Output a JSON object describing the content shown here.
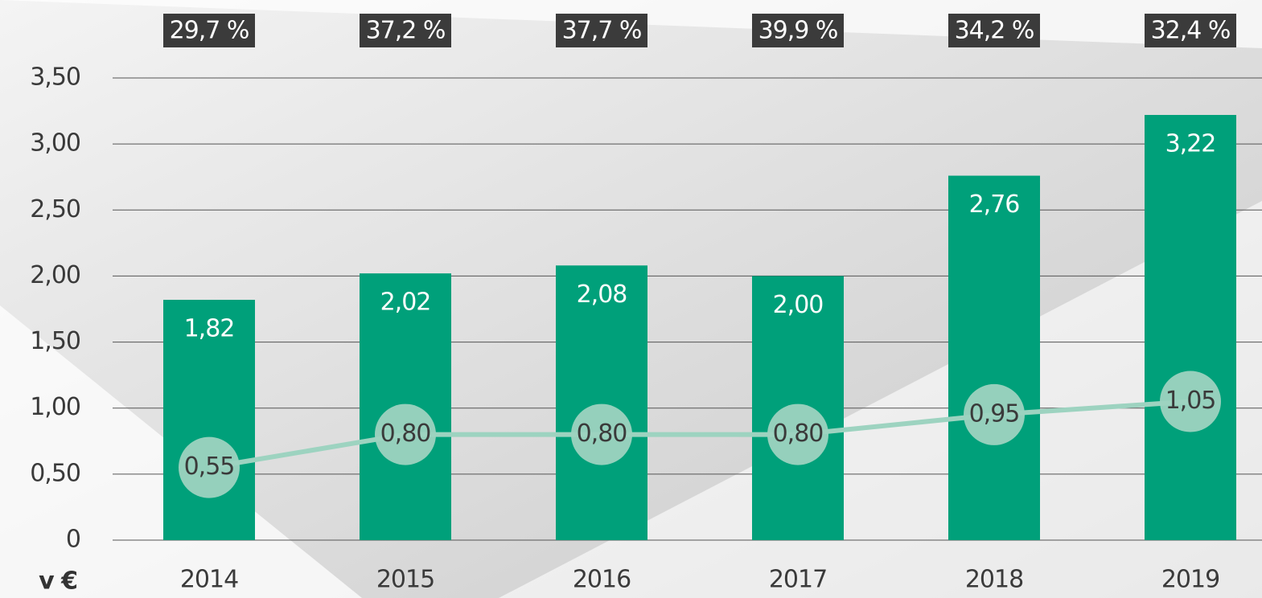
{
  "chart_data": {
    "type": "bar",
    "unit_label": "v €",
    "categories": [
      "2014",
      "2015",
      "2016",
      "2017",
      "2018",
      "2019"
    ],
    "annotations": [
      "29,7 %",
      "37,2 %",
      "37,7 %",
      "39,9 %",
      "34,2 %",
      "32,4 %"
    ],
    "series": [
      {
        "type": "bar",
        "color": "#00a07a",
        "values": [
          1.82,
          2.02,
          2.08,
          2.0,
          2.76,
          3.22
        ],
        "value_labels": [
          "1,82",
          "2,02",
          "2,08",
          "2,00",
          "2,76",
          "3,22"
        ]
      },
      {
        "type": "line",
        "color": "#9dd3c0",
        "values": [
          0.55,
          0.8,
          0.8,
          0.8,
          0.95,
          1.05
        ],
        "value_labels": [
          "0,55",
          "0,80",
          "0,80",
          "0,80",
          "0,95",
          "1,05"
        ]
      }
    ],
    "ylim": [
      0,
      3.5
    ],
    "yticks": [
      0,
      {
        "value": 0.5,
        "label": "0,50"
      },
      {
        "value": 1,
        "label": "1,00"
      },
      {
        "value": 1.5,
        "label": "1,50"
      },
      {
        "value": 2,
        "label": "2,00"
      },
      {
        "value": 2.5,
        "label": "2,50"
      },
      {
        "value": 3,
        "label": "3,00"
      },
      {
        "value": 3.5,
        "label": "3,50"
      }
    ],
    "grid": true
  }
}
